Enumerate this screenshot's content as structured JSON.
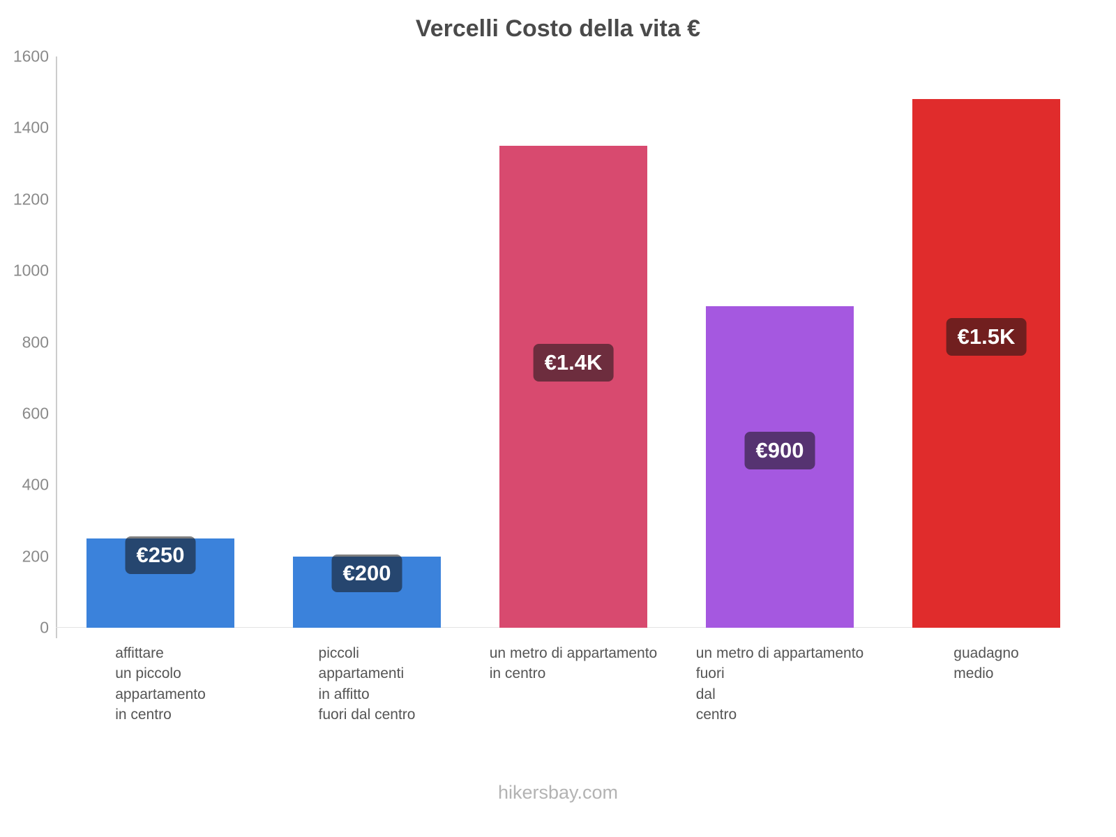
{
  "title": "Vercelli Costo della vita €",
  "footer": "hikersbay.com",
  "chart_data": {
    "type": "bar",
    "title": "Vercelli Costo della vita €",
    "categories": [
      [
        "affittare",
        "un piccolo",
        "appartamento",
        "in centro"
      ],
      [
        "piccoli",
        "appartamenti",
        "in affitto",
        "fuori dal centro"
      ],
      [
        "un metro di appartamento",
        "in centro"
      ],
      [
        "un metro di appartamento",
        "fuori",
        "dal",
        "centro"
      ],
      [
        "guadagno",
        "medio"
      ]
    ],
    "values": [
      250,
      200,
      1350,
      900,
      1480
    ],
    "value_labels": [
      "€250",
      "€200",
      "€1.4K",
      "€900",
      "€1.5K"
    ],
    "bar_colors": [
      "#3B82DB",
      "#3B82DB",
      "#D84A6F",
      "#A558E0",
      "#E02C2C"
    ],
    "badge_background": "rgba(22,22,22,0.55)",
    "xlabel": "",
    "ylabel": "",
    "ylim": [
      0,
      1600
    ],
    "yticks": [
      0,
      200,
      400,
      600,
      800,
      1000,
      1200,
      1400,
      1600
    ],
    "grid": false,
    "legend": false
  }
}
